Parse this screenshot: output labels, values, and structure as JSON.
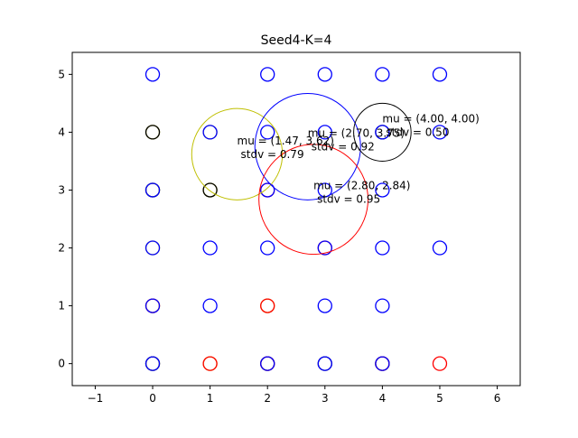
{
  "chart_data": {
    "type": "scatter",
    "title": "Seed4-K=4",
    "xlabel": "",
    "ylabel": "",
    "xlim": [
      -1.4,
      6.4
    ],
    "ylim": [
      -0.38,
      5.38
    ],
    "xticks": [
      -1,
      0,
      1,
      2,
      3,
      4,
      5,
      6
    ],
    "yticks": [
      0,
      1,
      2,
      3,
      4,
      5
    ],
    "grid": false,
    "legend": "none",
    "point_layers": [
      {
        "color": "#bfbf00",
        "points": [
          [
            0,
            0
          ],
          [
            1,
            0
          ],
          [
            0,
            1
          ],
          [
            2,
            1
          ],
          [
            0,
            2
          ],
          [
            0,
            3
          ],
          [
            1,
            3
          ],
          [
            0,
            4
          ],
          [
            1,
            4
          ]
        ]
      },
      {
        "color": "#000000",
        "points": [
          [
            0,
            0
          ],
          [
            2,
            0
          ],
          [
            3,
            0
          ],
          [
            4,
            0
          ],
          [
            0,
            3
          ],
          [
            1,
            3
          ],
          [
            0,
            4
          ],
          [
            4,
            4
          ]
        ]
      },
      {
        "color": "#ff0000",
        "points": [
          [
            0,
            1
          ],
          [
            1,
            0
          ],
          [
            2,
            0
          ],
          [
            2,
            1
          ],
          [
            3,
            2
          ],
          [
            4,
            0
          ],
          [
            5,
            0
          ],
          [
            2,
            3
          ]
        ]
      },
      {
        "color": "#0000ff",
        "points": [
          [
            0,
            0
          ],
          [
            2,
            0
          ],
          [
            3,
            0
          ],
          [
            4,
            0
          ],
          [
            0,
            1
          ],
          [
            1,
            1
          ],
          [
            3,
            1
          ],
          [
            4,
            1
          ],
          [
            0,
            2
          ],
          [
            1,
            2
          ],
          [
            2,
            2
          ],
          [
            3,
            2
          ],
          [
            4,
            2
          ],
          [
            5,
            2
          ],
          [
            0,
            3
          ],
          [
            2,
            3
          ],
          [
            3,
            3
          ],
          [
            4,
            3
          ],
          [
            0,
            5
          ],
          [
            2,
            5
          ],
          [
            3,
            5
          ],
          [
            4,
            5
          ],
          [
            5,
            5
          ],
          [
            1,
            4
          ],
          [
            2,
            4
          ],
          [
            3,
            4
          ],
          [
            4,
            4
          ],
          [
            5,
            4
          ]
        ]
      }
    ],
    "clusters": [
      {
        "color": "#bfbf00",
        "center": [
          1.47,
          3.62
        ],
        "radius": 0.79,
        "label_line1": "mu = (1.47, 3.62)",
        "label_line2": "stdv = 0.79"
      },
      {
        "color": "#0000ff",
        "center": [
          2.7,
          3.75
        ],
        "radius": 0.92,
        "label_line1": "mu = (2.70, 3.75)",
        "label_line2": "stdv = 0.92"
      },
      {
        "color": "#ff0000",
        "center": [
          2.8,
          2.84
        ],
        "radius": 0.95,
        "label_line1": "mu = (2.80, 2.84)",
        "label_line2": "stdv = 0.95"
      },
      {
        "color": "#000000",
        "center": [
          4.0,
          4.0
        ],
        "radius": 0.5,
        "label_line1": "mu = (4.00, 4.00)",
        "label_line2": "stdv = 0.50"
      }
    ]
  }
}
